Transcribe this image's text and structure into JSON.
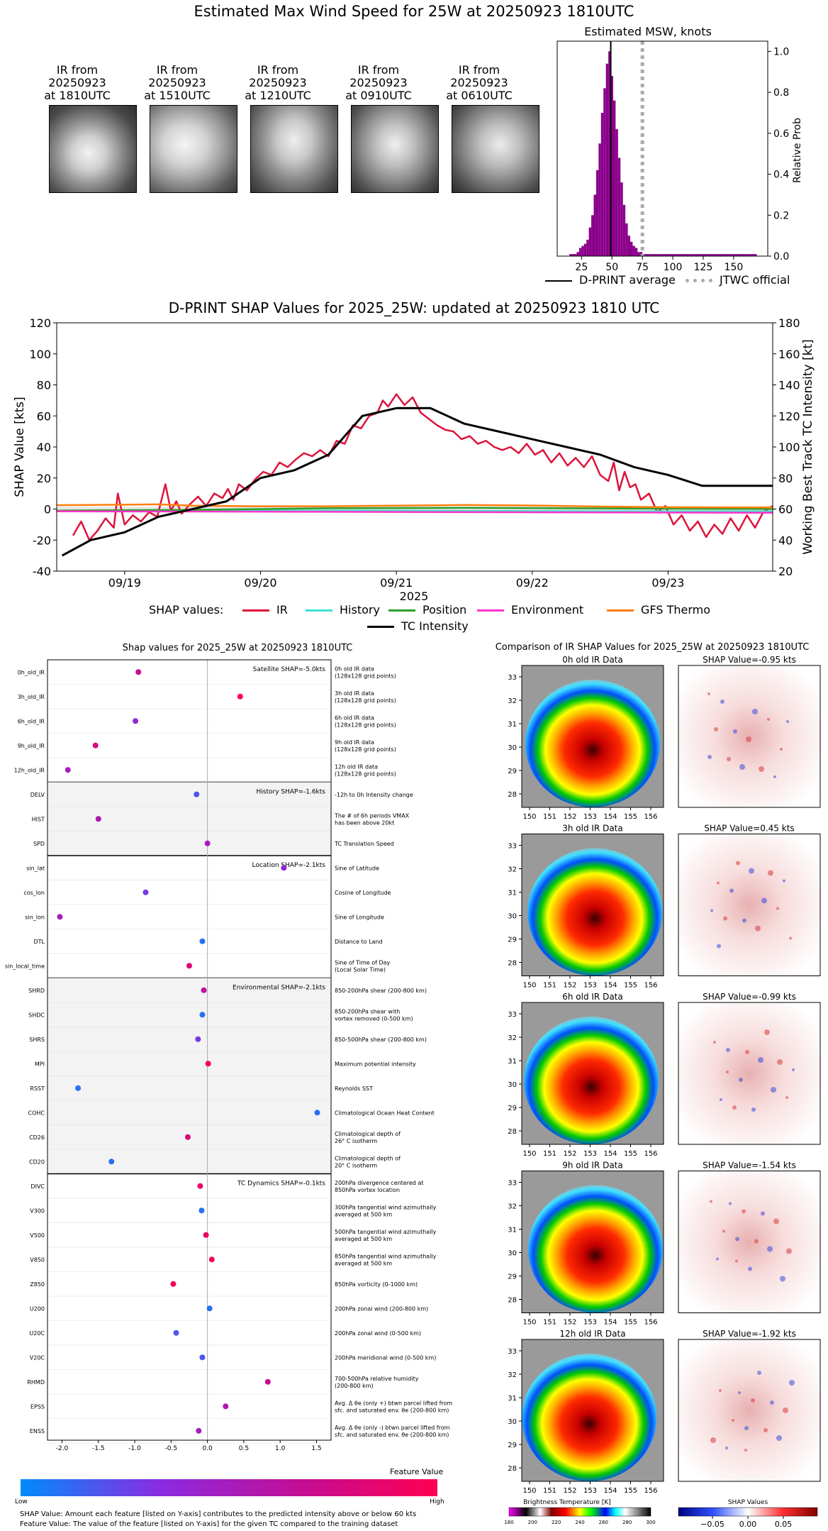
{
  "title": "Estimated Max Wind Speed for 25W at 20250923 1810UTC",
  "ir_thumbnails": [
    {
      "caption": [
        "IR from",
        "20250923",
        "at 1810UTC"
      ]
    },
    {
      "caption": [
        "IR from",
        "20250923",
        "at 1510UTC"
      ]
    },
    {
      "caption": [
        "IR from",
        "20250923",
        "at 1210UTC"
      ]
    },
    {
      "caption": [
        "IR from",
        "20250923",
        "at 0910UTC"
      ]
    },
    {
      "caption": [
        "IR from",
        "20250923",
        "at 0610UTC"
      ]
    }
  ],
  "hist": {
    "title": "Estimated MSW, knots",
    "ylabel": "Relative Prob",
    "legend": {
      "dprint": "D-PRINT average",
      "jtwc": "JTWC official"
    },
    "colors": {
      "bars": "#8b008b",
      "dprint": "#000000",
      "jtwc": "#aaaaaa"
    }
  },
  "shap_ts": {
    "title": "D-PRINT SHAP Values for 2025_25W: updated at 20250923 1810 UTC",
    "ylabel_left": "SHAP Value [kts]",
    "ylabel_right": "Working Best Track TC Intensity [kt]",
    "xlabel": "2025",
    "legend_label": "SHAP values:",
    "series_labels": [
      "IR",
      "History",
      "Position",
      "Environment",
      "GFS Thermo"
    ],
    "intensity_label": "TC Intensity",
    "colors": {
      "IR": "#dc143c",
      "History": "#40e0d0",
      "Position": "#2ca02c",
      "Environment": "#ff33cc",
      "GFS Thermo": "#ff7f0e",
      "TC Intensity": "#000000"
    }
  },
  "dots": {
    "title": "Shap values for 2025_25W at 20250923 1810UTC",
    "xlabel": "SHAP Value [kts]",
    "groups": [
      {
        "label": "Satellite SHAP=-5.0kts",
        "shaded": false,
        "features": [
          {
            "name": "0h_old_IR",
            "desc": [
              "0h old IR data",
              "(128x128 grid points)"
            ]
          },
          {
            "name": "3h_old_IR",
            "desc": [
              "3h old IR data",
              "(128x128 grid points)"
            ]
          },
          {
            "name": "6h_old_IR",
            "desc": [
              "6h old IR data",
              "(128x128 grid points)"
            ]
          },
          {
            "name": "9h_old_IR",
            "desc": [
              "9h old IR data",
              "(128x128 grid points)"
            ]
          },
          {
            "name": "12h_old_IR",
            "desc": [
              "12h old IR data",
              "(128x128 grid points)"
            ]
          }
        ]
      },
      {
        "label": "History SHAP=-1.6kts",
        "shaded": true,
        "features": [
          {
            "name": "DELV",
            "desc": [
              "-12h to 0h Intensity change"
            ]
          },
          {
            "name": "HIST",
            "desc": [
              "The # of 6h periods VMAX",
              "has been above 20kt"
            ]
          },
          {
            "name": "SPD",
            "desc": [
              "TC Translation Speed"
            ]
          }
        ]
      },
      {
        "label": "Location SHAP=-2.1kts",
        "shaded": false,
        "features": [
          {
            "name": "sin_lat",
            "desc": [
              "Sine of Latitude"
            ]
          },
          {
            "name": "cos_lon",
            "desc": [
              "Cosine of Longitude"
            ]
          },
          {
            "name": "sin_lon",
            "desc": [
              "Sine of Longitude"
            ]
          },
          {
            "name": "DTL",
            "desc": [
              "Distance to Land"
            ]
          },
          {
            "name": "sin_local_time",
            "desc": [
              "Sine of Time of Day",
              "(Local Solar Time)"
            ]
          }
        ]
      },
      {
        "label": "Environmental SHAP=-2.1kts",
        "shaded": true,
        "features": [
          {
            "name": "SHRD",
            "desc": [
              "850-200hPa shear (200-800 km)"
            ]
          },
          {
            "name": "SHDC",
            "desc": [
              "850-200hPa shear with",
              "vortex removed (0-500 km)"
            ]
          },
          {
            "name": "SHRS",
            "desc": [
              "850-500hPa shear (200-800 km)"
            ]
          },
          {
            "name": "MPI",
            "desc": [
              "Maximum potential intensity"
            ]
          },
          {
            "name": "RSST",
            "desc": [
              "Reynolds SST"
            ]
          },
          {
            "name": "COHC",
            "desc": [
              "Climatological Ocean Heat Content"
            ]
          },
          {
            "name": "CD26",
            "desc": [
              "Climatological depth of",
              "26° C isotherm"
            ]
          },
          {
            "name": "CD20",
            "desc": [
              "Climatological depth of",
              "20° C isotherm"
            ]
          }
        ]
      },
      {
        "label": "TC Dynamics SHAP=-0.1kts",
        "shaded": false,
        "features": [
          {
            "name": "DIVC",
            "desc": [
              "200hPa divergence centered at",
              "850hPa vortex location"
            ]
          },
          {
            "name": "V300",
            "desc": [
              "300hPa tangential wind azimuthally",
              "averaged at 500 km"
            ]
          },
          {
            "name": "V500",
            "desc": [
              "500hPa tangential wind azimuthally",
              "averaged at 500 km"
            ]
          },
          {
            "name": "V850",
            "desc": [
              "850hPa tangential wind azimuthally",
              "averaged at 500 km"
            ]
          },
          {
            "name": "Z850",
            "desc": [
              "850hPa vorticity (0-1000 km)"
            ]
          },
          {
            "name": "U200",
            "desc": [
              "200hPa zonal wind (200-800 km)"
            ]
          },
          {
            "name": "U20C",
            "desc": [
              "200hPa zonal wind (0-500 km)"
            ]
          },
          {
            "name": "V20C",
            "desc": [
              "200hPa meridional wind (0-500 km)"
            ]
          },
          {
            "name": "RHMD",
            "desc": [
              "700-500hPa relative humidity",
              "(200-800 km)"
            ]
          },
          {
            "name": "EPSS",
            "desc": [
              "Avg. Δ θe (only +) btwn parcel lifted from",
              "sfc. and saturated env. θe (200-800 km)"
            ]
          },
          {
            "name": "ENSS",
            "desc": [
              "Avg. Δ θe (only -) btwn parcel lifted from",
              "sfc. and saturated env. θe (200-800 km)"
            ]
          }
        ]
      }
    ],
    "colorbar": {
      "title": "Feature Value",
      "low": "Low",
      "high": "High"
    },
    "footnotes": [
      "SHAP Value: Amount each feature [listed on Y-axis] contributes to the predicted intensity above or below 60 kts",
      "Feature Value: The value of the feature [listed on Y-axis] for the given TC compared to the training dataset"
    ]
  },
  "ir_compare": {
    "title": "Comparison of IR SHAP Values for 2025_25W at 20250923 1810UTC",
    "rows": [
      {
        "ir_title": "0h old IR Data",
        "shap_title": "SHAP Value=-0.95 kts"
      },
      {
        "ir_title": "3h old IR Data",
        "shap_title": "SHAP Value=0.45 kts"
      },
      {
        "ir_title": "6h old IR Data",
        "shap_title": "SHAP Value=-0.99 kts"
      },
      {
        "ir_title": "9h old IR Data",
        "shap_title": "SHAP Value=-1.54 kts"
      },
      {
        "ir_title": "12h old IR Data",
        "shap_title": "SHAP Value=-1.92 kts"
      }
    ],
    "lat_ticks": [
      "33",
      "32",
      "31",
      "30",
      "29",
      "28"
    ],
    "lon_ticks": [
      "150",
      "151",
      "152",
      "153",
      "154",
      "155",
      "156"
    ],
    "bt_label": "Brightness Temperature [K]",
    "bt_ticks": [
      "180",
      "200",
      "220",
      "240",
      "260",
      "280",
      "300"
    ],
    "shap_cbar_label": "SHAP Values",
    "shap_cbar_ticks": [
      "−0.05",
      "0.00",
      "0.05"
    ]
  },
  "chart_data": [
    {
      "type": "bar",
      "title": "Estimated MSW, knots",
      "ylabel": "Relative Prob",
      "xlim": [
        5,
        178
      ],
      "ylim": [
        0,
        1.05
      ],
      "xticks": [
        25,
        50,
        75,
        100,
        125,
        150
      ],
      "yticks": [
        0.0,
        0.2,
        0.4,
        0.6,
        0.8,
        1.0
      ],
      "bin_width": 2,
      "bins": [
        16,
        18,
        20,
        22,
        24,
        26,
        28,
        30,
        32,
        34,
        36,
        38,
        40,
        42,
        44,
        46,
        48,
        50,
        52,
        54,
        56,
        58,
        60,
        62,
        64,
        66,
        68,
        70,
        72,
        74,
        76,
        78,
        80,
        82,
        84,
        86,
        88,
        90,
        92,
        94,
        96,
        98,
        100,
        102,
        104,
        106,
        108,
        110,
        112,
        114,
        116,
        118,
        120,
        122,
        124,
        126,
        128,
        130,
        132,
        134,
        136,
        138,
        140,
        142,
        144,
        146,
        148,
        150,
        152,
        154,
        156,
        158,
        160,
        162,
        164,
        166,
        168
      ],
      "values": [
        0.01,
        0.01,
        0.01,
        0.02,
        0.04,
        0.05,
        0.06,
        0.08,
        0.14,
        0.2,
        0.3,
        0.42,
        0.55,
        0.7,
        0.82,
        0.94,
        1.0,
        0.88,
        0.76,
        0.62,
        0.48,
        0.36,
        0.25,
        0.16,
        0.1,
        0.07,
        0.05,
        0.04,
        0.02,
        0.02,
        0.01,
        0.01,
        0.01,
        0.01,
        0.01,
        0.01,
        0.01,
        0.01,
        0.01,
        0.01,
        0.01,
        0.01,
        0.01,
        0.01,
        0.01,
        0.01,
        0.01,
        0.01,
        0.01,
        0.01,
        0.01,
        0.01,
        0.01,
        0.01,
        0.01,
        0.01,
        0.01,
        0.01,
        0.01,
        0.01,
        0.01,
        0.01,
        0.01,
        0.01,
        0.01,
        0.01,
        0.01,
        0.01,
        0.01,
        0.01,
        0.01,
        0.01,
        0.01,
        0.01,
        0.01,
        0.01,
        0.01
      ],
      "dprint_average": 49,
      "jtwc_official": 75
    },
    {
      "type": "line",
      "title": "D-PRINT SHAP Values for 2025_25W: updated at 20250923 1810 UTC",
      "xlabel": "2025",
      "ylabel": "SHAP Value [kts]",
      "ylabel_right": "Working Best Track TC Intensity [kt]",
      "x_unit": "days since 2025-09-19 00:00 UTC",
      "xlim": [
        -0.5,
        4.77
      ],
      "xticks": [
        {
          "x": 0,
          "label": "09/19"
        },
        {
          "x": 1,
          "label": "09/20"
        },
        {
          "x": 2,
          "label": "09/21"
        },
        {
          "x": 3,
          "label": "09/22"
        },
        {
          "x": 4,
          "label": "09/23"
        }
      ],
      "ylim": [
        -40,
        120
      ],
      "yticks": [
        -40,
        -20,
        0,
        20,
        40,
        60,
        80,
        100,
        120
      ],
      "ylim_right": [
        20,
        180
      ],
      "yticks_right": [
        20,
        40,
        60,
        80,
        100,
        120,
        140,
        160,
        180
      ],
      "series": [
        {
          "name": "IR",
          "x": [
            -0.38,
            -0.32,
            -0.26,
            -0.2,
            -0.14,
            -0.08,
            -0.05,
            0.0,
            0.06,
            0.12,
            0.18,
            0.24,
            0.3,
            0.34,
            0.38,
            0.42,
            0.48,
            0.54,
            0.6,
            0.66,
            0.72,
            0.76,
            0.8,
            0.84,
            0.9,
            0.96,
            1.02,
            1.08,
            1.14,
            1.2,
            1.26,
            1.32,
            1.38,
            1.44,
            1.5,
            1.56,
            1.62,
            1.68,
            1.74,
            1.8,
            1.86,
            1.9,
            1.94,
            2.0,
            2.06,
            2.12,
            2.18,
            2.24,
            2.3,
            2.36,
            2.42,
            2.48,
            2.54,
            2.6,
            2.66,
            2.72,
            2.78,
            2.84,
            2.9,
            2.96,
            3.02,
            3.08,
            3.14,
            3.2,
            3.26,
            3.32,
            3.38,
            3.44,
            3.5,
            3.56,
            3.6,
            3.64,
            3.68,
            3.72,
            3.76,
            3.8,
            3.86,
            3.92,
            3.98,
            4.04,
            4.1,
            4.16,
            4.22,
            4.28,
            4.34,
            4.4,
            4.46,
            4.52,
            4.58,
            4.64,
            4.7,
            4.77
          ],
          "y": [
            -17,
            -8,
            -20,
            -14,
            -6,
            -12,
            10,
            -10,
            -4,
            -8,
            -2,
            -5,
            16,
            -1,
            5,
            -3,
            3,
            8,
            2,
            10,
            7,
            13,
            6,
            16,
            12,
            19,
            24,
            22,
            30,
            27,
            32,
            36,
            34,
            38,
            34,
            44,
            42,
            54,
            52,
            60,
            62,
            70,
            66,
            74,
            67,
            72,
            62,
            58,
            54,
            51,
            50,
            45,
            47,
            42,
            44,
            40,
            38,
            40,
            36,
            42,
            35,
            38,
            30,
            36,
            28,
            33,
            27,
            34,
            22,
            18,
            30,
            12,
            24,
            14,
            16,
            6,
            10,
            -2,
            2,
            -10,
            -4,
            -14,
            -8,
            -18,
            -10,
            -16,
            -6,
            -14,
            -4,
            -12,
            -2,
            2
          ]
        },
        {
          "name": "History",
          "x": [
            -0.5,
            0.5,
            1.5,
            2.5,
            3.5,
            4.77
          ],
          "y": [
            -1.5,
            -1.2,
            -1.0,
            -1.2,
            -1.4,
            -1.5
          ]
        },
        {
          "name": "Position",
          "x": [
            -0.5,
            0.5,
            1.5,
            2.5,
            3.5,
            4.77
          ],
          "y": [
            -1.0,
            -0.5,
            0.5,
            0.8,
            0.4,
            0.0
          ]
        },
        {
          "name": "Environment",
          "x": [
            -0.5,
            0.5,
            1.5,
            2.5,
            3.5,
            4.77
          ],
          "y": [
            -1.5,
            -1.6,
            -1.8,
            -2.0,
            -2.2,
            -2.4
          ]
        },
        {
          "name": "GFS Thermo",
          "x": [
            -0.5,
            0.0,
            0.25,
            0.5,
            1.0,
            1.5,
            2.0,
            2.5,
            3.0,
            3.5,
            4.0,
            4.77
          ],
          "y": [
            2.5,
            2.8,
            3.0,
            2.2,
            1.8,
            1.8,
            2.2,
            2.6,
            2.3,
            1.6,
            1.2,
            1.0
          ]
        },
        {
          "name": "TC Intensity",
          "axis": "right",
          "x": [
            -0.46,
            -0.25,
            0.0,
            0.25,
            0.5,
            0.75,
            1.0,
            1.25,
            1.5,
            1.75,
            2.0,
            2.25,
            2.5,
            2.75,
            3.0,
            3.25,
            3.5,
            3.75,
            4.0,
            4.25,
            4.5,
            4.77
          ],
          "y": [
            30,
            40,
            45,
            55,
            60,
            65,
            80,
            85,
            95,
            120,
            125,
            125,
            115,
            110,
            105,
            100,
            95,
            87,
            82,
            75,
            75,
            75
          ]
        }
      ]
    },
    {
      "type": "scatter",
      "title": "Shap values for 2025_25W at 20250923 1810UTC",
      "xlabel": "SHAP Value [kts]",
      "xlim": [
        -2.2,
        1.7
      ],
      "xticks": [
        -2.0,
        -1.5,
        -1.0,
        -0.5,
        0.0,
        0.5,
        1.0,
        1.5
      ],
      "features": [
        "0h_old_IR",
        "3h_old_IR",
        "6h_old_IR",
        "9h_old_IR",
        "12h_old_IR",
        "DELV",
        "HIST",
        "SPD",
        "sin_lat",
        "cos_lon",
        "sin_lon",
        "DTL",
        "sin_local_time",
        "SHRD",
        "SHDC",
        "SHRS",
        "MPI",
        "RSST",
        "COHC",
        "CD26",
        "CD20",
        "DIVC",
        "V300",
        "V500",
        "V850",
        "Z850",
        "U200",
        "U20C",
        "V20C",
        "RHMD",
        "EPSS",
        "ENSS"
      ],
      "values": [
        -0.95,
        0.45,
        -0.99,
        -1.54,
        -1.92,
        -0.15,
        -1.5,
        0.0,
        1.05,
        -0.85,
        -2.03,
        -0.07,
        -0.25,
        -0.05,
        -0.07,
        -0.13,
        0.01,
        -1.78,
        1.51,
        -0.27,
        -1.32,
        -0.1,
        -0.08,
        -0.02,
        0.06,
        -0.47,
        0.03,
        -0.43,
        -0.07,
        0.83,
        0.25,
        -0.12
      ],
      "feature_value": [
        0.7,
        1.0,
        0.4,
        0.8,
        0.5,
        0.2,
        0.55,
        0.5,
        0.4,
        0.3,
        0.5,
        0.1,
        0.8,
        0.6,
        0.1,
        0.3,
        0.95,
        0.1,
        0.1,
        0.8,
        0.1,
        0.9,
        0.1,
        0.9,
        0.95,
        0.95,
        0.1,
        0.2,
        0.2,
        0.65,
        0.55,
        0.5
      ]
    }
  ]
}
